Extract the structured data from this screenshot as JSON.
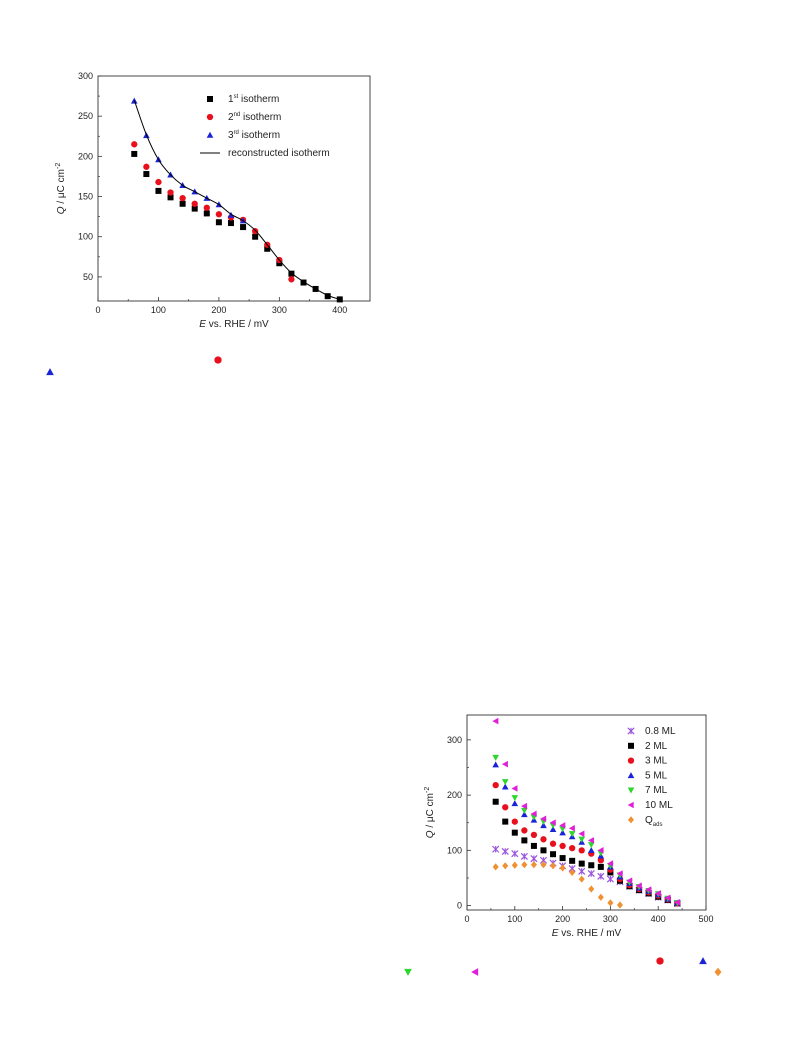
{
  "chart_data": [
    {
      "type": "scatter",
      "title": "",
      "xlabel": {
        "italic": "E",
        "rest": " vs. RHE / mV"
      },
      "ylabel": {
        "italic": "Q",
        "rest": " / μC cm",
        "sup": "-2"
      },
      "xlim": [
        0,
        450
      ],
      "ylim": [
        20,
        300
      ],
      "xticks": [
        0,
        100,
        200,
        300,
        400
      ],
      "yticks": [
        50,
        100,
        150,
        200,
        250,
        300
      ],
      "grid": false,
      "legend_position": "top-right",
      "series": [
        {
          "name": "1",
          "sup": "st",
          "suffix": " isotherm",
          "marker": "square",
          "color": "#000000",
          "x": [
            60,
            80,
            100,
            120,
            140,
            160,
            180,
            200,
            220,
            240,
            260,
            280,
            300,
            320,
            340,
            360,
            380,
            400
          ],
          "y": [
            203,
            178,
            157,
            149,
            141,
            135,
            129,
            118,
            117,
            112,
            100,
            85,
            67,
            54,
            43,
            35,
            26,
            22
          ]
        },
        {
          "name": "2",
          "sup": "nd",
          "suffix": " isotherm",
          "marker": "circle",
          "color": "#e8101c",
          "x": [
            60,
            80,
            100,
            120,
            140,
            160,
            180,
            200,
            220,
            240,
            260,
            280,
            300,
            320
          ],
          "y": [
            215,
            187,
            168,
            155,
            148,
            141,
            136,
            128,
            124,
            121,
            107,
            90,
            71,
            47
          ]
        },
        {
          "name": "3",
          "sup": "rd",
          "suffix": " isotherm",
          "marker": "triangle-up",
          "color": "#1a24d6",
          "x": [
            60,
            80,
            100,
            120,
            140,
            160,
            180,
            200,
            220,
            240
          ],
          "y": [
            269,
            226,
            196,
            177,
            164,
            156,
            148,
            140,
            127,
            120
          ]
        },
        {
          "name": "reconstructed isotherm",
          "marker": "line",
          "color": "#000000",
          "x": [
            60,
            80,
            100,
            120,
            140,
            160,
            180,
            200,
            220,
            240,
            260,
            280,
            300,
            320,
            340,
            360,
            380,
            400
          ],
          "y": [
            270,
            227,
            196,
            177,
            164,
            156,
            148,
            140,
            128,
            120,
            108,
            90,
            71,
            55,
            44,
            35,
            27,
            22
          ]
        }
      ]
    },
    {
      "type": "scatter",
      "title": "",
      "xlabel": {
        "italic": "E",
        "rest": " vs. RHE / mV"
      },
      "ylabel": {
        "italic": "Q",
        "rest": " / μC cm",
        "sup": "-2"
      },
      "xlim": [
        0,
        500
      ],
      "ylim": [
        -8,
        345
      ],
      "xticks": [
        0,
        100,
        200,
        300,
        400,
        500
      ],
      "yticks": [
        0,
        100,
        200,
        300
      ],
      "grid": false,
      "legend_position": "top-right",
      "series": [
        {
          "name": "0.8 ML",
          "marker": "asterisk",
          "color": "#9a55e0",
          "x": [
            60,
            80,
            100,
            120,
            140,
            160,
            180,
            200,
            220,
            240,
            260,
            280,
            300,
            320,
            340,
            360,
            380,
            400,
            420,
            440
          ],
          "y": [
            102,
            98,
            94,
            89,
            85,
            82,
            77,
            72,
            67,
            62,
            58,
            53,
            48,
            43,
            35,
            28,
            22,
            15,
            10,
            4
          ]
        },
        {
          "name": "2 ML",
          "marker": "square",
          "color": "#000000",
          "x": [
            60,
            80,
            100,
            120,
            140,
            160,
            180,
            200,
            220,
            240,
            260,
            280,
            300,
            320,
            340,
            360,
            380,
            400,
            420,
            440
          ],
          "y": [
            188,
            152,
            132,
            118,
            108,
            100,
            93,
            86,
            81,
            76,
            73,
            70,
            60,
            45,
            35,
            28,
            22,
            16,
            10,
            4
          ]
        },
        {
          "name": "3 ML",
          "marker": "circle",
          "color": "#e8101c",
          "x": [
            60,
            80,
            100,
            120,
            140,
            160,
            180,
            200,
            220,
            240,
            260,
            280,
            300,
            320,
            340,
            360,
            380,
            400,
            420,
            440
          ],
          "y": [
            218,
            178,
            152,
            136,
            128,
            120,
            112,
            108,
            104,
            100,
            94,
            82,
            65,
            48,
            37,
            30,
            24,
            18,
            11,
            4
          ]
        },
        {
          "name": "5 ML",
          "marker": "triangle-up",
          "color": "#1a24d6",
          "x": [
            60,
            80,
            100,
            120,
            140,
            160,
            180,
            200,
            220,
            240,
            260,
            280,
            300,
            320,
            340,
            360,
            380,
            400,
            420,
            440
          ],
          "y": [
            255,
            215,
            185,
            165,
            155,
            145,
            138,
            132,
            125,
            115,
            100,
            90,
            70,
            52,
            40,
            32,
            26,
            20,
            12,
            5
          ]
        },
        {
          "name": "7 ML",
          "marker": "triangle-down",
          "color": "#2cd62c",
          "x": [
            60,
            80,
            100,
            120,
            140,
            160,
            180,
            200,
            220,
            240,
            260,
            280,
            300,
            320,
            340,
            360,
            380,
            400,
            420,
            440
          ],
          "y": [
            268,
            224,
            195,
            172,
            160,
            152,
            145,
            139,
            130,
            120,
            110,
            95,
            72,
            55,
            42,
            34,
            27,
            21,
            13,
            5
          ]
        },
        {
          "name": "10 ML",
          "marker": "triangle-left",
          "color": "#e020d8",
          "x": [
            60,
            80,
            100,
            120,
            140,
            160,
            180,
            200,
            220,
            240,
            260,
            280,
            300,
            320,
            340,
            360,
            380,
            400,
            420,
            440
          ],
          "y": [
            334,
            256,
            212,
            180,
            166,
            157,
            150,
            145,
            140,
            130,
            118,
            100,
            76,
            58,
            45,
            36,
            29,
            22,
            14,
            6
          ]
        },
        {
          "name": "Q",
          "sub": "ads",
          "marker": "diamond",
          "color": "#f09030",
          "x": [
            60,
            80,
            100,
            120,
            140,
            160,
            180,
            200,
            220,
            240,
            260,
            280,
            300,
            320
          ],
          "y": [
            70,
            72,
            73,
            74,
            74,
            74,
            72,
            68,
            60,
            48,
            30,
            15,
            5,
            1
          ]
        }
      ]
    }
  ],
  "stray_symbols": [
    {
      "marker": "triangle-up",
      "color": "#1a24d6"
    },
    {
      "marker": "circle",
      "color": "#e8101c"
    },
    {
      "marker": "triangle-down",
      "color": "#2cd62c"
    },
    {
      "marker": "triangle-left",
      "color": "#e020d8"
    },
    {
      "marker": "circle",
      "color": "#e8101c"
    },
    {
      "marker": "triangle-up",
      "color": "#1a24d6"
    },
    {
      "marker": "diamond",
      "color": "#f09030"
    }
  ]
}
